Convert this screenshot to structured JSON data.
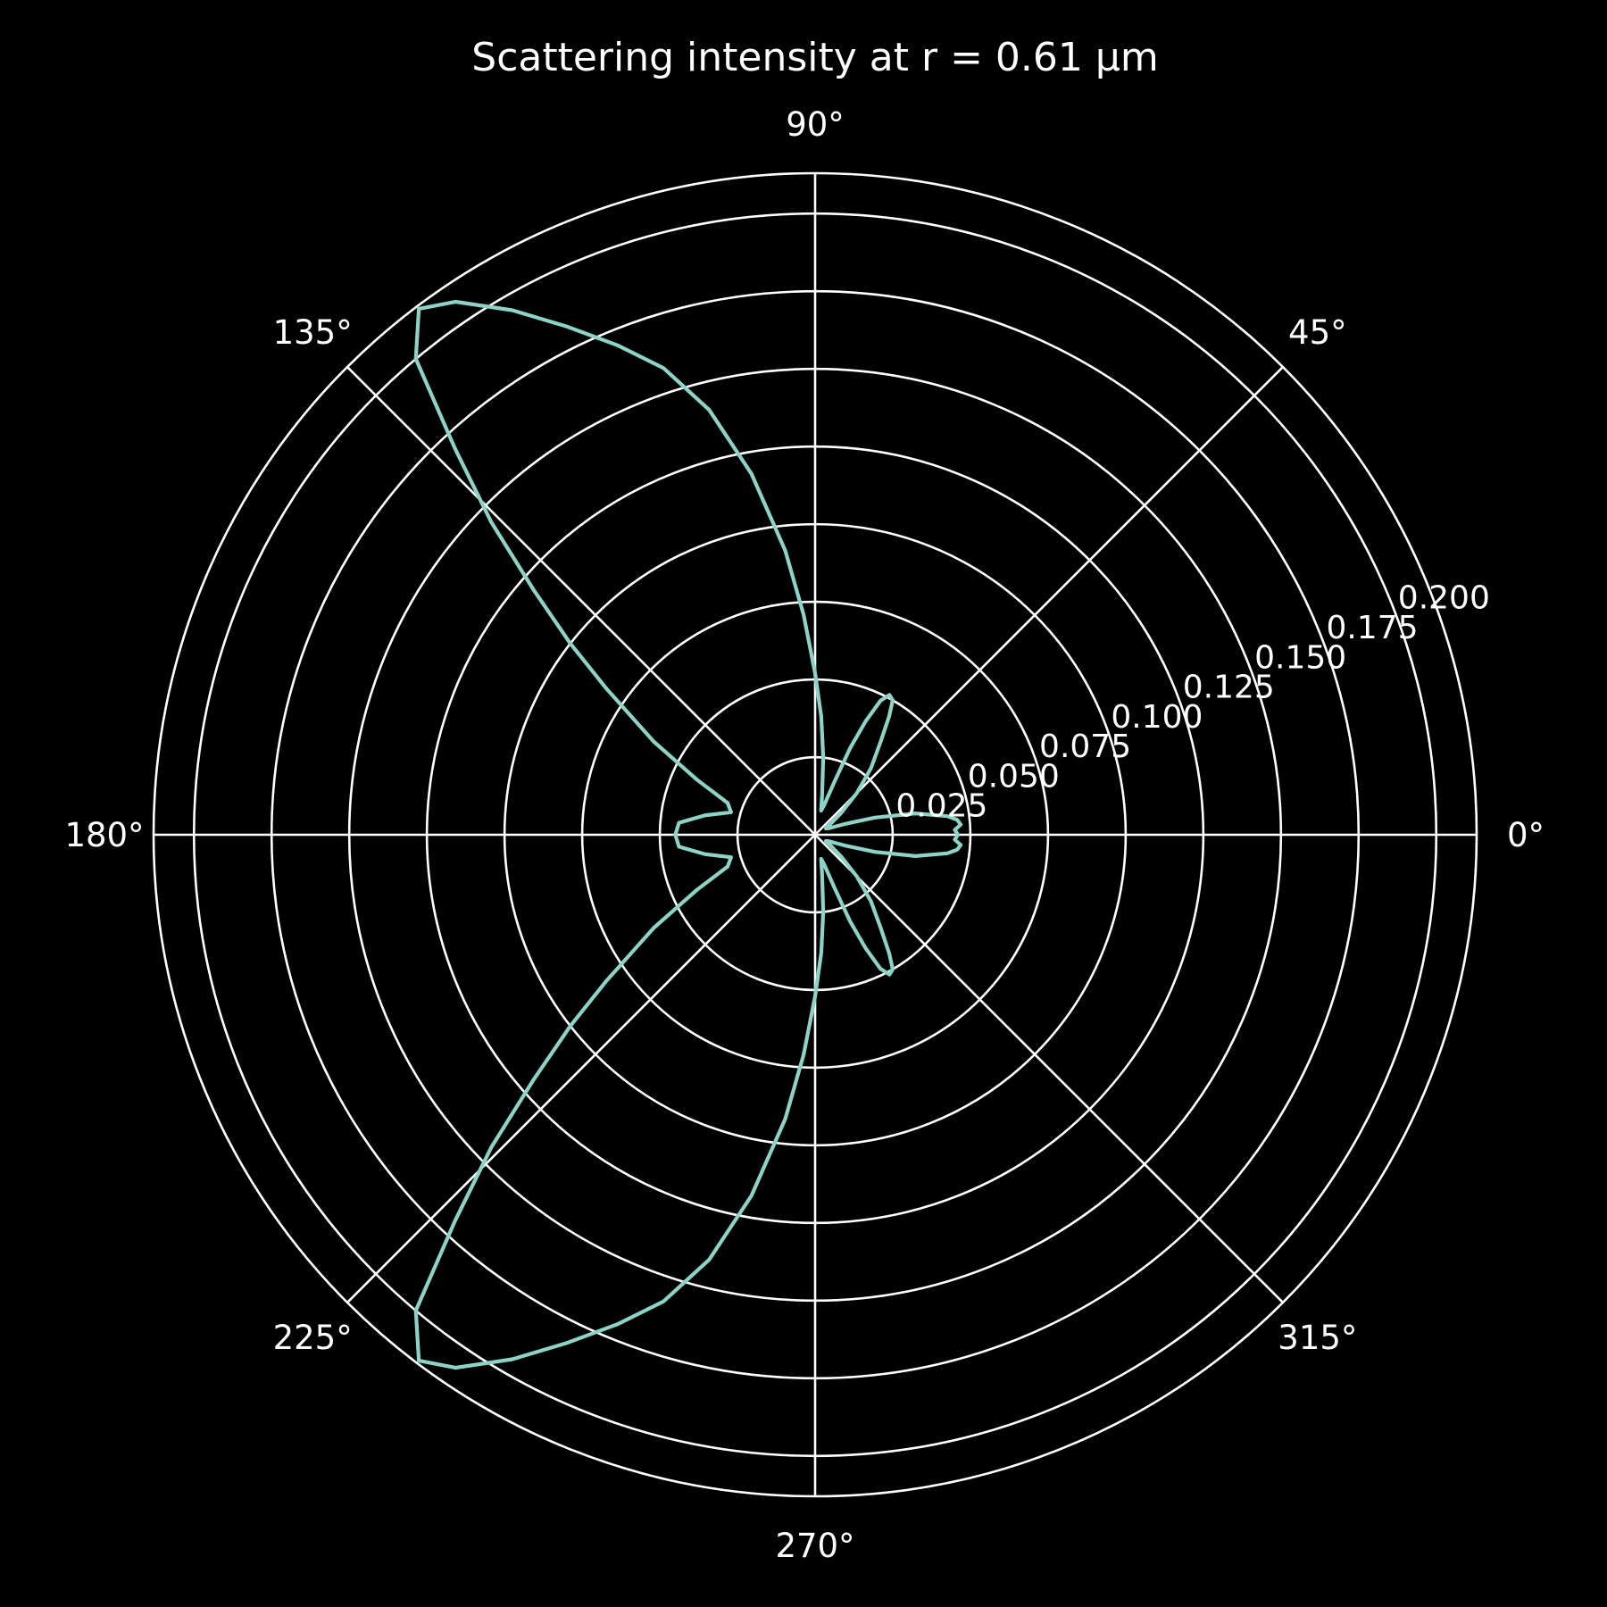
{
  "chart_data": {
    "type": "line",
    "projection": "polar",
    "title": "Scattering intensity at r = 0.61 µm",
    "theta_unit": "degrees",
    "theta_tick_labels": [
      "0°",
      "45°",
      "90°",
      "135°",
      "180°",
      "225°",
      "270°",
      "315°"
    ],
    "theta_ticks": [
      0,
      45,
      90,
      135,
      180,
      225,
      270,
      315
    ],
    "r_ticks": [
      0.025,
      0.05,
      0.075,
      0.1,
      0.125,
      0.15,
      0.175,
      0.2
    ],
    "r_tick_labels": [
      "0.025",
      "0.050",
      "0.075",
      "0.100",
      "0.125",
      "0.150",
      "0.175",
      "0.200"
    ],
    "r_label_angle": 22.5,
    "rlim": [
      0,
      0.213
    ],
    "grid": true,
    "series": [
      {
        "color": "#8dd3c7",
        "theta": [
          0,
          2,
          4,
          6,
          8,
          12,
          16,
          20,
          25,
          30,
          35,
          40,
          45,
          50,
          55,
          58,
          60,
          62,
          64,
          66,
          68,
          70,
          73,
          76,
          80,
          84,
          87,
          90,
          93,
          96,
          100,
          104,
          108,
          112,
          116,
          120,
          124,
          127,
          130,
          133,
          136,
          139,
          142,
          145,
          150,
          155,
          160,
          165,
          170,
          175,
          180,
          185,
          190,
          195,
          200,
          205,
          210,
          215,
          218,
          221,
          224,
          227,
          230,
          233,
          236,
          240,
          244,
          248,
          252,
          256,
          260,
          264,
          267,
          270,
          273,
          276,
          280,
          284,
          287,
          290,
          292,
          294,
          296,
          298,
          300,
          302,
          305,
          310,
          315,
          320,
          325,
          330,
          335,
          340,
          344,
          348,
          352,
          354,
          356,
          358,
          360
        ],
        "r": [
          0.046,
          0.045,
          0.047,
          0.046,
          0.043,
          0.033,
          0.02,
          0.01,
          0.005,
          0.004,
          0.006,
          0.011,
          0.019,
          0.028,
          0.037,
          0.045,
          0.05,
          0.051,
          0.048,
          0.04,
          0.03,
          0.018,
          0.01,
          0.008,
          0.013,
          0.025,
          0.038,
          0.052,
          0.071,
          0.092,
          0.118,
          0.141,
          0.158,
          0.17,
          0.182,
          0.195,
          0.207,
          0.212,
          0.2,
          0.17,
          0.145,
          0.12,
          0.1,
          0.082,
          0.06,
          0.042,
          0.03,
          0.028,
          0.036,
          0.044,
          0.045,
          0.044,
          0.036,
          0.028,
          0.03,
          0.042,
          0.06,
          0.082,
          0.1,
          0.12,
          0.145,
          0.17,
          0.2,
          0.212,
          0.207,
          0.195,
          0.182,
          0.17,
          0.158,
          0.141,
          0.118,
          0.092,
          0.071,
          0.052,
          0.038,
          0.025,
          0.013,
          0.008,
          0.01,
          0.018,
          0.03,
          0.04,
          0.048,
          0.051,
          0.05,
          0.045,
          0.037,
          0.028,
          0.019,
          0.011,
          0.006,
          0.004,
          0.005,
          0.01,
          0.02,
          0.033,
          0.043,
          0.046,
          0.047,
          0.045,
          0.046
        ]
      }
    ]
  }
}
